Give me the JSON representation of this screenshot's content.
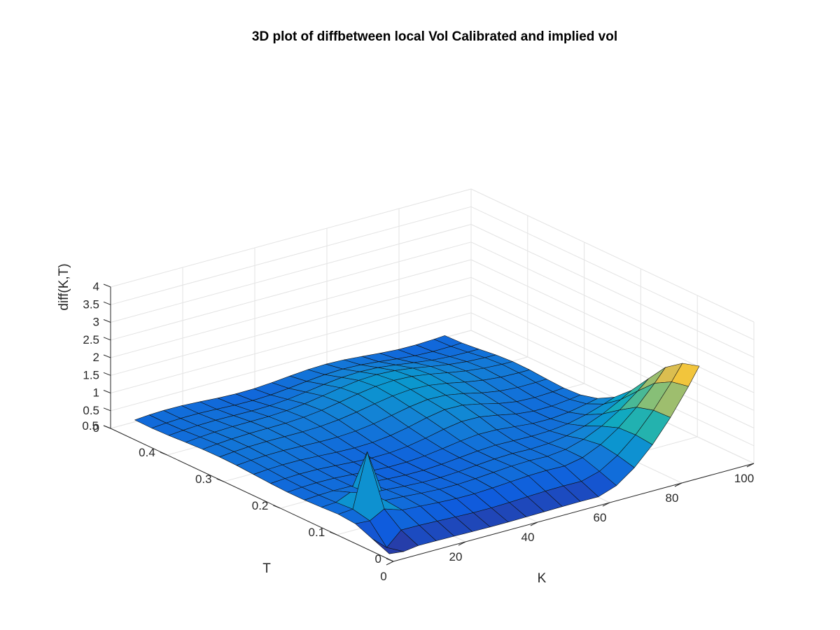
{
  "chart_data": {
    "type": "surface",
    "title": "3D plot of diffbetween local Vol Calibrated and implied vol",
    "xlabel": "K",
    "ylabel": "T",
    "zlabel": "diff(K,T)",
    "xlim": [
      0,
      100
    ],
    "ylim": [
      0,
      0.5
    ],
    "zlim": [
      0,
      4
    ],
    "xticks": [
      "0",
      "20",
      "40",
      "60",
      "80",
      "100"
    ],
    "yticks": [
      "0",
      "0.1",
      "0.2",
      "0.3",
      "0.4",
      "0.5"
    ],
    "zticks": [
      "0",
      "0.5",
      "1",
      "1.5",
      "2",
      "2.5",
      "3",
      "3.5",
      "4"
    ],
    "grid": true,
    "colormap": [
      "#352a87",
      "#0f5cdd",
      "#1481d6",
      "#06a4ca",
      "#2eb7a4",
      "#87bf77",
      "#d1bb59",
      "#fec832",
      "#f9fb0e"
    ],
    "K": [
      2,
      6,
      10,
      15,
      20,
      25,
      30,
      35,
      40,
      45,
      50,
      55,
      60,
      65,
      70,
      75,
      80,
      85,
      88
    ],
    "T": [
      0.02,
      0.05,
      0.08,
      0.11,
      0.14,
      0.17,
      0.2,
      0.23,
      0.26,
      0.29,
      0.32,
      0.35,
      0.38,
      0.41,
      0.44,
      0.47
    ],
    "peak": {
      "K": 10,
      "T": 0.11,
      "diff": 1.5
    }
  }
}
